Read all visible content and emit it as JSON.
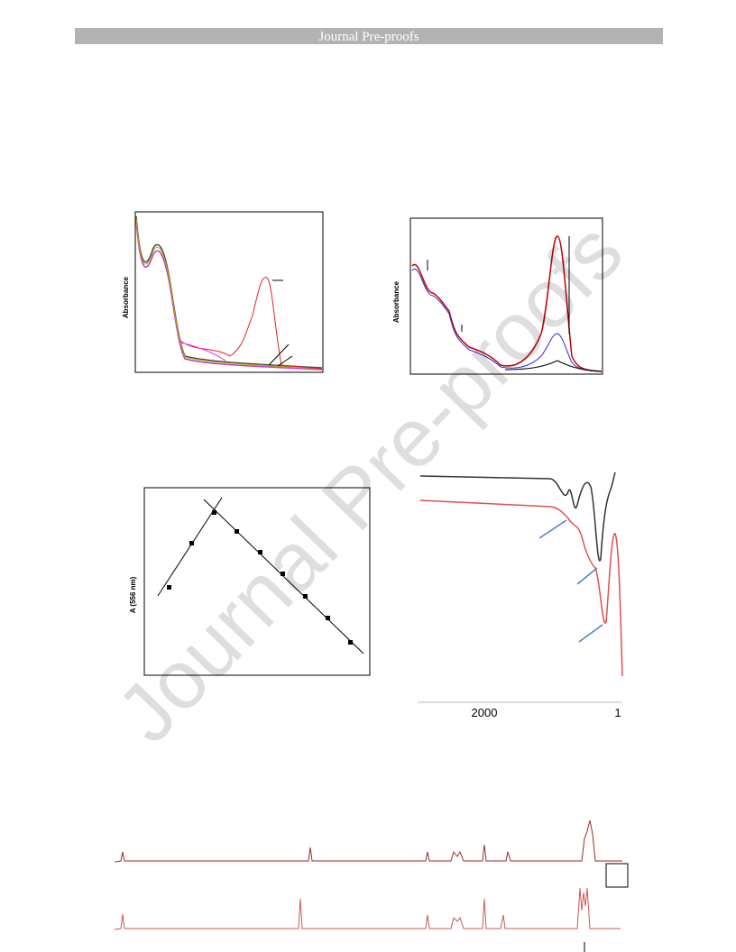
{
  "header": {
    "title": "Journal Pre-proofs"
  },
  "watermark": "Journal Pre-proofs",
  "figures": [
    {
      "y_label": "Absorbance"
    },
    {
      "y_label": "Absorbance"
    },
    {
      "y_label": "A (556 nm)"
    },
    {
      "x_tick_labels": [
        "2000",
        "1"
      ]
    }
  ]
}
